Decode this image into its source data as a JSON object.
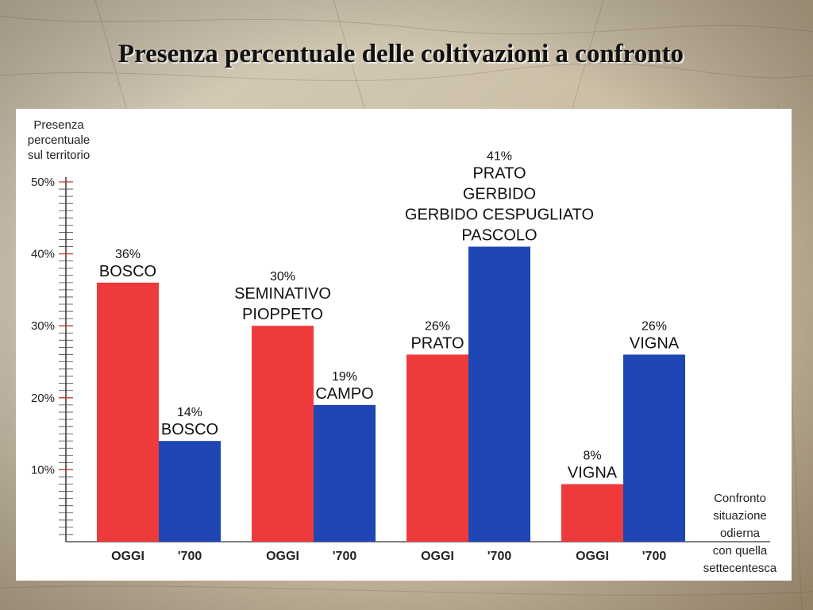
{
  "slide": {
    "title": "Presenza percentuale delle coltivazioni a confronto",
    "background_color": "#cdc2ab",
    "panel_color": "#ffffff"
  },
  "chart_data": {
    "type": "bar",
    "ylabel": [
      "Presenza",
      "percentuale",
      "sul territorio"
    ],
    "xlabel": [
      "Confronto",
      "situazione",
      "odierna",
      "con quella",
      "settecentesca"
    ],
    "ylim": [
      0,
      50
    ],
    "yticks": [
      "10%",
      "20%",
      "30%",
      "40%",
      "50%"
    ],
    "ytick_values": [
      10,
      20,
      30,
      40,
      50
    ],
    "series_colors": {
      "OGGI": "#ee3a3a",
      "'700": "#1f46b4"
    },
    "groups": [
      {
        "bars": [
          {
            "label": "OGGI",
            "value": 36,
            "pct": "36%",
            "names": [
              "BOSCO"
            ]
          },
          {
            "label": "'700",
            "value": 14,
            "pct": "14%",
            "names": [
              "BOSCO"
            ]
          }
        ]
      },
      {
        "bars": [
          {
            "label": "OGGI",
            "value": 30,
            "pct": "30%",
            "names": [
              "SEMINATIVO",
              "PIOPPETO"
            ]
          },
          {
            "label": "'700",
            "value": 19,
            "pct": "19%",
            "names": [
              "CAMPO"
            ]
          }
        ]
      },
      {
        "bars": [
          {
            "label": "OGGI",
            "value": 26,
            "pct": "26%",
            "names": [
              "PRATO"
            ]
          },
          {
            "label": "'700",
            "value": 41,
            "pct": "41%",
            "names": [
              "PRATO",
              "GERBIDO",
              "GERBIDO CESPUGLIATO",
              "PASCOLO"
            ]
          }
        ]
      },
      {
        "bars": [
          {
            "label": "OGGI",
            "value": 8,
            "pct": "8%",
            "names": [
              "VIGNA"
            ]
          },
          {
            "label": "'700",
            "value": 26,
            "pct": "26%",
            "names": [
              "VIGNA"
            ]
          }
        ]
      }
    ]
  }
}
